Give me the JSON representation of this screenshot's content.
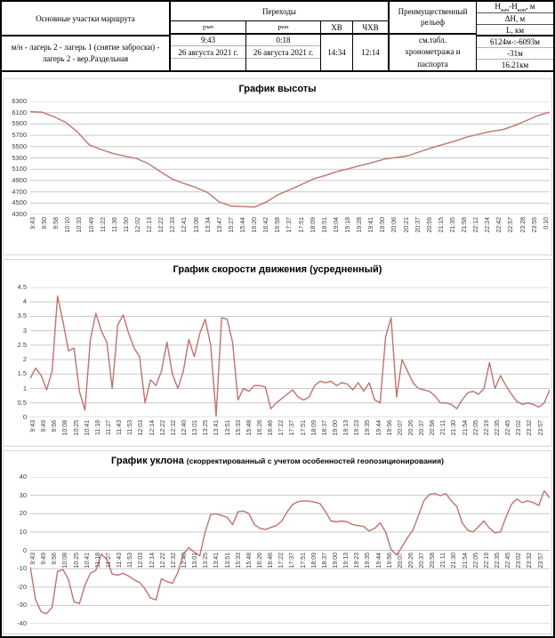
{
  "table": {
    "col_route_header": "Основные участки маршрута",
    "col_transitions_header": "Переходы",
    "t_start_label": {
      "base": "t",
      "sub": "нач"
    },
    "t_end_label": {
      "base": "t",
      "sub": "кон"
    },
    "col_hv": "ХВ",
    "col_chv": "ЧХВ",
    "col_relief_header": "Преимущественный рельеф",
    "col_h_header": {
      "h1": "H",
      "s1": "нач",
      "h2": "-H",
      "s2": "кон",
      "suffix": ", м"
    },
    "col_dh_header": "ΔH, м",
    "col_l_header": "L, км",
    "route": "м/н - лагерь 2 - лагерь 1 (снятие заброски) - лагерь 2 - вер.Раздельная",
    "t_start_time": "9:43",
    "t_start_date": "26 августа 2021 г.",
    "t_end_time": "0:18",
    "t_end_date": "26 августа 2021 г.",
    "hv_value": "14:34",
    "chv_value": "12:14",
    "relief_line1": "см.табл.",
    "relief_line2": "хронометража и",
    "relief_line3": "паспорта",
    "h_value": "6124м-:-6093м",
    "dh_value": "-31м",
    "l_value": "16.21км"
  },
  "colors": {
    "line": "#c0736e",
    "grid": "#c9c9c9",
    "axis_text": "#3f3f3f"
  },
  "chart_data": [
    {
      "type": "line",
      "title": "График высоты",
      "ylabel": "",
      "xlabel": "",
      "ylim": [
        4300,
        6300
      ],
      "y_ticks": [
        "6300",
        "6100",
        "5900",
        "5700",
        "5500",
        "5300",
        "5100",
        "4900",
        "4700",
        "4500",
        "4300"
      ],
      "grid": true,
      "legend": "none",
      "categories": [
        "9:43",
        "9:50",
        "9:58",
        "10:10",
        "10:33",
        "10:49",
        "11:22",
        "11:36",
        "11:50",
        "12:02",
        "12:13",
        "12:22",
        "12:33",
        "12:41",
        "13:06",
        "13:34",
        "13:47",
        "15:27",
        "15:44",
        "16:20",
        "16:42",
        "16:58",
        "17:37",
        "17:51",
        "18:09",
        "18:51",
        "19:04",
        "19:18",
        "19:28",
        "19:41",
        "19:50",
        "20:06",
        "20:21",
        "20:37",
        "20:59",
        "21:15",
        "21:35",
        "21:58",
        "22:12",
        "22:24",
        "22:42",
        "22:57",
        "23:28",
        "23:55",
        "0:10"
      ],
      "points_per_category": 1,
      "values": [
        6120,
        6110,
        6030,
        5930,
        5760,
        5530,
        5450,
        5380,
        5330,
        5290,
        5200,
        5060,
        4930,
        4850,
        4780,
        4690,
        4520,
        4450,
        4440,
        4430,
        4520,
        4650,
        4740,
        4830,
        4930,
        4990,
        5060,
        5110,
        5170,
        5220,
        5280,
        5310,
        5340,
        5410,
        5480,
        5540,
        5600,
        5670,
        5720,
        5770,
        5800,
        5870,
        5960,
        6050,
        6110
      ]
    },
    {
      "type": "line",
      "title": "График скорости движения (усредненный)",
      "ylabel": "",
      "xlabel": "",
      "ylim": [
        0,
        4.5
      ],
      "y_ticks": [
        "4.5",
        "4",
        "3.5",
        "3",
        "2.5",
        "2",
        "1.5",
        "1",
        "0.5",
        "0"
      ],
      "grid": true,
      "legend": "none",
      "categories": [
        "9:43",
        "9:49",
        "9:56",
        "10:08",
        "10:25",
        "10:41",
        "11:18",
        "11:27",
        "11:43",
        "11:53",
        "12:03",
        "12:14",
        "12:22",
        "12:32",
        "12:40",
        "13:01",
        "13:25",
        "13:41",
        "13:51",
        "15:33",
        "15:48",
        "16:26",
        "16:46",
        "17:22",
        "17:37",
        "17:51",
        "18:09",
        "18:37",
        "19:00",
        "19:13",
        "19:23",
        "19:35",
        "19:44",
        "19:56",
        "20:07",
        "20:26",
        "20:37",
        "20:58",
        "21:11",
        "21:30",
        "21:54",
        "22:05",
        "22:19",
        "22:35",
        "22:45",
        "23:02",
        "23:32",
        "23:57"
      ],
      "points_per_category": 2,
      "values": [
        1.35,
        1.7,
        1.45,
        0.95,
        1.6,
        4.2,
        3.3,
        2.3,
        2.4,
        0.9,
        0.25,
        2.7,
        3.6,
        3.0,
        2.6,
        1.0,
        3.2,
        3.55,
        2.9,
        2.4,
        2.1,
        0.5,
        1.3,
        1.1,
        1.6,
        2.6,
        1.5,
        1.0,
        1.6,
        2.7,
        2.1,
        2.9,
        3.4,
        2.5,
        0.05,
        3.45,
        3.4,
        2.6,
        0.6,
        1.0,
        0.9,
        1.1,
        1.1,
        1.05,
        0.3,
        0.5,
        0.65,
        0.8,
        0.95,
        0.7,
        0.6,
        0.7,
        1.1,
        1.25,
        1.2,
        1.25,
        1.1,
        1.2,
        1.15,
        0.95,
        1.2,
        0.9,
        1.2,
        0.6,
        0.5,
        2.8,
        3.45,
        0.7,
        2.0,
        1.6,
        1.2,
        1.0,
        0.95,
        0.9,
        0.75,
        0.5,
        0.5,
        0.45,
        0.3,
        0.6,
        0.85,
        0.9,
        0.8,
        1.0,
        1.9,
        1.0,
        1.45,
        1.1,
        0.8,
        0.55,
        0.45,
        0.5,
        0.45,
        0.35,
        0.5,
        0.95
      ]
    },
    {
      "type": "line",
      "title": "График уклона",
      "title_note": "(скорректированный  с учетом  особенностей  геопозиционирования)",
      "ylabel": "",
      "xlabel": "",
      "ylim": [
        -40,
        40
      ],
      "y_ticks": [
        "40",
        "30",
        "20",
        "10",
        "0",
        "-10",
        "-20",
        "-30",
        "-40"
      ],
      "grid": true,
      "legend": "none",
      "categories": [
        "9:43",
        "9:49",
        "9:56",
        "10:08",
        "10:25",
        "10:41",
        "11:18",
        "11:27",
        "11:43",
        "11:53",
        "12:03",
        "12:14",
        "12:22",
        "12:32",
        "12:40",
        "13:01",
        "13:25",
        "13:41",
        "13:51",
        "15:33",
        "15:48",
        "16:26",
        "16:46",
        "17:22",
        "17:37",
        "17:51",
        "18:09",
        "18:37",
        "19:00",
        "19:13",
        "19:23",
        "19:35",
        "19:44",
        "19:56",
        "20:07",
        "20:26",
        "20:37",
        "20:58",
        "21:11",
        "21:30",
        "21:54",
        "22:05",
        "22:19",
        "22:35",
        "22:45",
        "23:02",
        "23:32",
        "23:57"
      ],
      "points_per_category": 2,
      "values": [
        -9,
        -27,
        -33.5,
        -34.5,
        -31,
        -11.5,
        -10.5,
        -16,
        -28,
        -29,
        -19,
        -12.5,
        -10.8,
        -2,
        -5,
        -13,
        -13.5,
        -12.5,
        -14,
        -16,
        -17.5,
        -21,
        -26,
        -27,
        -15.5,
        -17,
        -18,
        -12,
        -2,
        1.5,
        -1,
        -3,
        10,
        19.5,
        20,
        19,
        18,
        14,
        21,
        21.5,
        20,
        14,
        12,
        11.3,
        12.5,
        13.5,
        16,
        21,
        25,
        26.5,
        27,
        26.8,
        26.3,
        25.5,
        21,
        16,
        15.5,
        16,
        15.5,
        14,
        13.5,
        13,
        10.5,
        12,
        15,
        10,
        0.5,
        -2.5,
        2,
        7,
        11,
        19,
        27,
        30.5,
        31,
        29.8,
        31,
        27,
        24,
        15,
        11,
        10,
        13,
        16,
        12,
        9.5,
        10,
        18,
        25,
        28,
        26,
        27,
        26,
        24.5,
        32.5,
        28.5
      ]
    }
  ]
}
